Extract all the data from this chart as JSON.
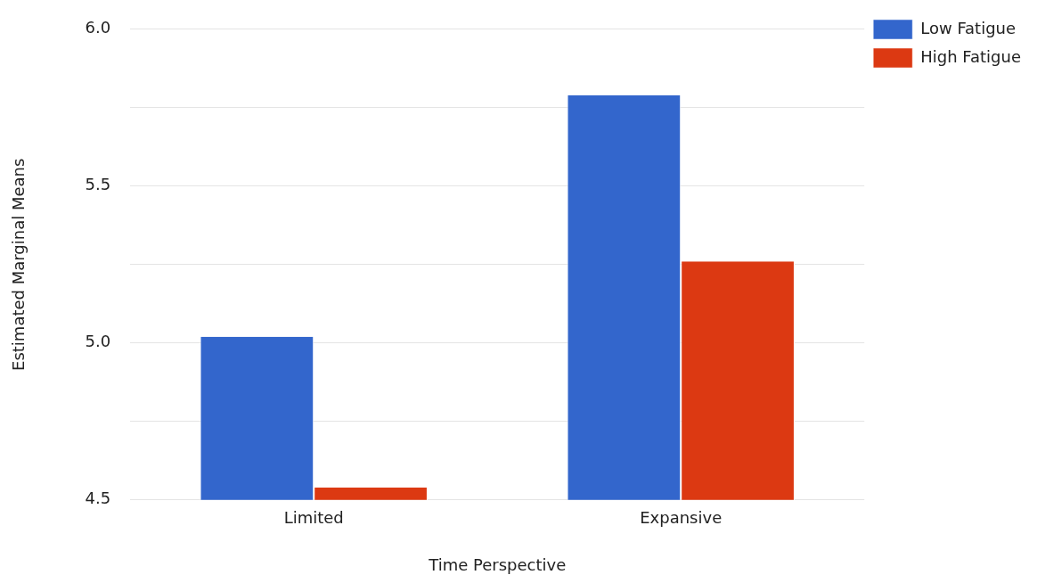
{
  "chart_data": {
    "type": "bar",
    "xlabel": "Time Perspective",
    "ylabel": "Estimated Marginal Means",
    "categories": [
      "Limited",
      "Expansive"
    ],
    "series": [
      {
        "name": "Low Fatigue",
        "color": "#3366cc",
        "values": [
          5.02,
          5.79
        ]
      },
      {
        "name": "High Fatigue",
        "color": "#dc3912",
        "values": [
          4.54,
          5.26
        ]
      }
    ],
    "ylim": [
      4.5,
      6.0
    ],
    "yticks": [
      {
        "value": 4.5,
        "label": "4.5"
      },
      {
        "value": 4.75,
        "label": null
      },
      {
        "value": 5.0,
        "label": "5.0"
      },
      {
        "value": 5.25,
        "label": null
      },
      {
        "value": 5.5,
        "label": "5.5"
      },
      {
        "value": 5.75,
        "label": null
      },
      {
        "value": 6.0,
        "label": "6.0"
      }
    ],
    "grid": "y",
    "legend": "top right"
  }
}
